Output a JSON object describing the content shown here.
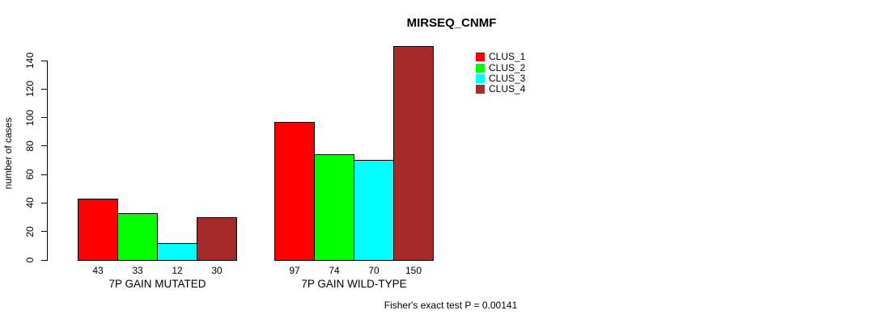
{
  "chart_data": {
    "type": "bar",
    "title": "MIRSEQ_CNMF",
    "ylabel": "number of cases",
    "xlabel": "",
    "categories": [
      "7P GAIN MUTATED",
      "7P GAIN WILD-TYPE"
    ],
    "series": [
      {
        "name": "CLUS_1",
        "color": "#ff0000",
        "values": [
          43,
          97
        ]
      },
      {
        "name": "CLUS_2",
        "color": "#00ff00",
        "values": [
          33,
          74
        ]
      },
      {
        "name": "CLUS_3",
        "color": "#00ffff",
        "values": [
          12,
          70
        ]
      },
      {
        "name": "CLUS_4",
        "color": "#a52a2a",
        "values": [
          30,
          150
        ]
      }
    ],
    "yticks": [
      0,
      20,
      40,
      60,
      80,
      100,
      120,
      140
    ],
    "ylim": [
      0,
      140
    ],
    "grid": false,
    "show_bar_values": true,
    "legend_position": "top-right",
    "annotation": "Fisher's exact test P = 0.00141"
  }
}
